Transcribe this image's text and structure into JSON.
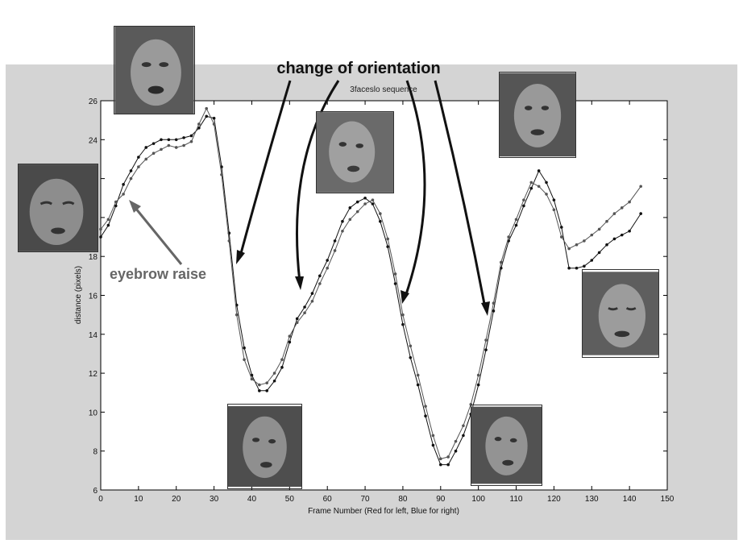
{
  "chart_data": {
    "type": "line",
    "title": "3faceslo sequence",
    "xlabel": "Frame Number (Red for left, Blue for right)",
    "ylabel": "distance (pixels)",
    "xlim": [
      0,
      150
    ],
    "ylim": [
      6,
      26
    ],
    "xticks": [
      0,
      10,
      20,
      30,
      40,
      50,
      60,
      70,
      80,
      90,
      100,
      110,
      120,
      130,
      140,
      150
    ],
    "yticks": [
      6,
      8,
      10,
      12,
      14,
      16,
      18,
      20,
      22,
      24,
      26
    ],
    "grid": false,
    "series": [
      {
        "color": "#111111",
        "points": [
          [
            0,
            19
          ],
          [
            2,
            19.6
          ],
          [
            4,
            20.6
          ],
          [
            6,
            21.7
          ],
          [
            8,
            22.4
          ],
          [
            10,
            23.1
          ],
          [
            12,
            23.6
          ],
          [
            14,
            23.8
          ],
          [
            16,
            24
          ],
          [
            18,
            24
          ],
          [
            20,
            24
          ],
          [
            22,
            24.1
          ],
          [
            24,
            24.2
          ],
          [
            26,
            24.6
          ],
          [
            28,
            25.2
          ],
          [
            30,
            25.1
          ],
          [
            32,
            22.6
          ],
          [
            34,
            19.2
          ],
          [
            36,
            15.5
          ],
          [
            38,
            13.3
          ],
          [
            40,
            11.9
          ],
          [
            42,
            11.1
          ],
          [
            44,
            11.1
          ],
          [
            46,
            11.6
          ],
          [
            48,
            12.3
          ],
          [
            50,
            13.6
          ],
          [
            52,
            14.8
          ],
          [
            54,
            15.4
          ],
          [
            56,
            16.1
          ],
          [
            58,
            17
          ],
          [
            60,
            17.8
          ],
          [
            62,
            18.8
          ],
          [
            64,
            19.8
          ],
          [
            66,
            20.5
          ],
          [
            68,
            20.8
          ],
          [
            70,
            21
          ],
          [
            72,
            20.7
          ],
          [
            74,
            19.8
          ],
          [
            76,
            18.5
          ],
          [
            78,
            16.6
          ],
          [
            80,
            14.5
          ],
          [
            82,
            12.8
          ],
          [
            84,
            11.4
          ],
          [
            86,
            9.8
          ],
          [
            88,
            8.3
          ],
          [
            90,
            7.3
          ],
          [
            92,
            7.3
          ],
          [
            94,
            8
          ],
          [
            96,
            8.8
          ],
          [
            98,
            9.9
          ],
          [
            100,
            11.4
          ],
          [
            102,
            13.2
          ],
          [
            104,
            15.2
          ],
          [
            106,
            17.4
          ],
          [
            108,
            18.8
          ],
          [
            110,
            19.6
          ],
          [
            112,
            20.6
          ],
          [
            114,
            21.5
          ],
          [
            116,
            22.4
          ],
          [
            118,
            21.8
          ],
          [
            120,
            20.9
          ],
          [
            122,
            19.5
          ],
          [
            124,
            17.4
          ],
          [
            126,
            17.4
          ],
          [
            128,
            17.5
          ],
          [
            130,
            17.8
          ],
          [
            132,
            18.2
          ],
          [
            134,
            18.6
          ],
          [
            136,
            18.9
          ],
          [
            138,
            19.1
          ],
          [
            140,
            19.3
          ],
          [
            143,
            20.2
          ]
        ]
      },
      {
        "color": "#555555",
        "points": [
          [
            0,
            19.4
          ],
          [
            2,
            19.9
          ],
          [
            4,
            20.8
          ],
          [
            6,
            21.2
          ],
          [
            8,
            22
          ],
          [
            10,
            22.6
          ],
          [
            12,
            23
          ],
          [
            14,
            23.3
          ],
          [
            16,
            23.5
          ],
          [
            18,
            23.7
          ],
          [
            20,
            23.6
          ],
          [
            22,
            23.7
          ],
          [
            24,
            23.9
          ],
          [
            26,
            24.8
          ],
          [
            28,
            25.6
          ],
          [
            30,
            24.8
          ],
          [
            32,
            22.2
          ],
          [
            34,
            18.8
          ],
          [
            36,
            15
          ],
          [
            38,
            12.7
          ],
          [
            40,
            11.7
          ],
          [
            42,
            11.4
          ],
          [
            44,
            11.5
          ],
          [
            46,
            12
          ],
          [
            48,
            12.7
          ],
          [
            50,
            13.9
          ],
          [
            52,
            14.6
          ],
          [
            54,
            15.1
          ],
          [
            56,
            15.7
          ],
          [
            58,
            16.6
          ],
          [
            60,
            17.4
          ],
          [
            62,
            18.3
          ],
          [
            64,
            19.3
          ],
          [
            66,
            19.9
          ],
          [
            68,
            20.3
          ],
          [
            70,
            20.7
          ],
          [
            72,
            20.9
          ],
          [
            74,
            20.2
          ],
          [
            76,
            18.9
          ],
          [
            78,
            17.1
          ],
          [
            80,
            15
          ],
          [
            82,
            13.4
          ],
          [
            84,
            11.9
          ],
          [
            86,
            10.3
          ],
          [
            88,
            8.8
          ],
          [
            90,
            7.6
          ],
          [
            92,
            7.7
          ],
          [
            94,
            8.5
          ],
          [
            96,
            9.3
          ],
          [
            98,
            10.4
          ],
          [
            100,
            11.9
          ],
          [
            102,
            13.7
          ],
          [
            104,
            15.6
          ],
          [
            106,
            17.7
          ],
          [
            108,
            19
          ],
          [
            110,
            19.9
          ],
          [
            112,
            20.9
          ],
          [
            114,
            21.8
          ],
          [
            116,
            21.6
          ],
          [
            118,
            21.2
          ],
          [
            120,
            20.4
          ],
          [
            122,
            19
          ],
          [
            124,
            18.4
          ],
          [
            126,
            18.6
          ],
          [
            128,
            18.8
          ],
          [
            130,
            19.1
          ],
          [
            132,
            19.4
          ],
          [
            134,
            19.8
          ],
          [
            136,
            20.2
          ],
          [
            138,
            20.5
          ],
          [
            140,
            20.8
          ],
          [
            143,
            21.6
          ]
        ]
      }
    ],
    "annotations": [
      {
        "text": "change of orientation",
        "color": "#111111"
      },
      {
        "text": "eyebrow raise",
        "color": "#666666"
      }
    ]
  }
}
